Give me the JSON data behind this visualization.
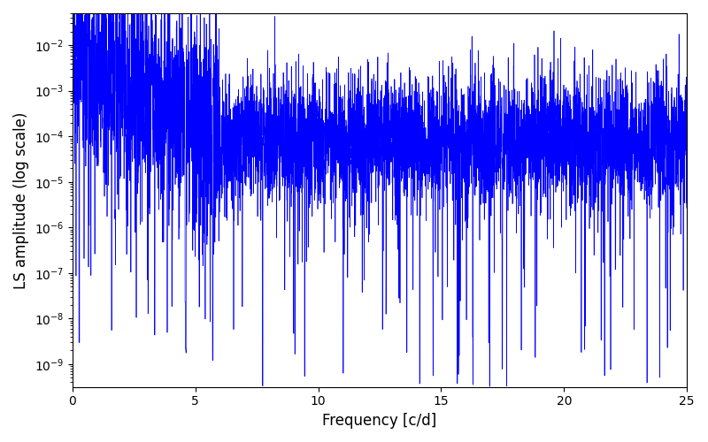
{
  "line_color": "#0000ff",
  "xlabel": "Frequency [c/d]",
  "ylabel": "LS amplitude (log scale)",
  "xlim": [
    0,
    25
  ],
  "ylim_log_min": -9.5,
  "ylim_log_max": -1.3,
  "xmin": 0,
  "xmax": 25,
  "n_points": 6000,
  "seed": 77,
  "background_color": "#ffffff",
  "linewidth": 0.5,
  "figsize": [
    8.0,
    5.0
  ],
  "dpi": 100
}
